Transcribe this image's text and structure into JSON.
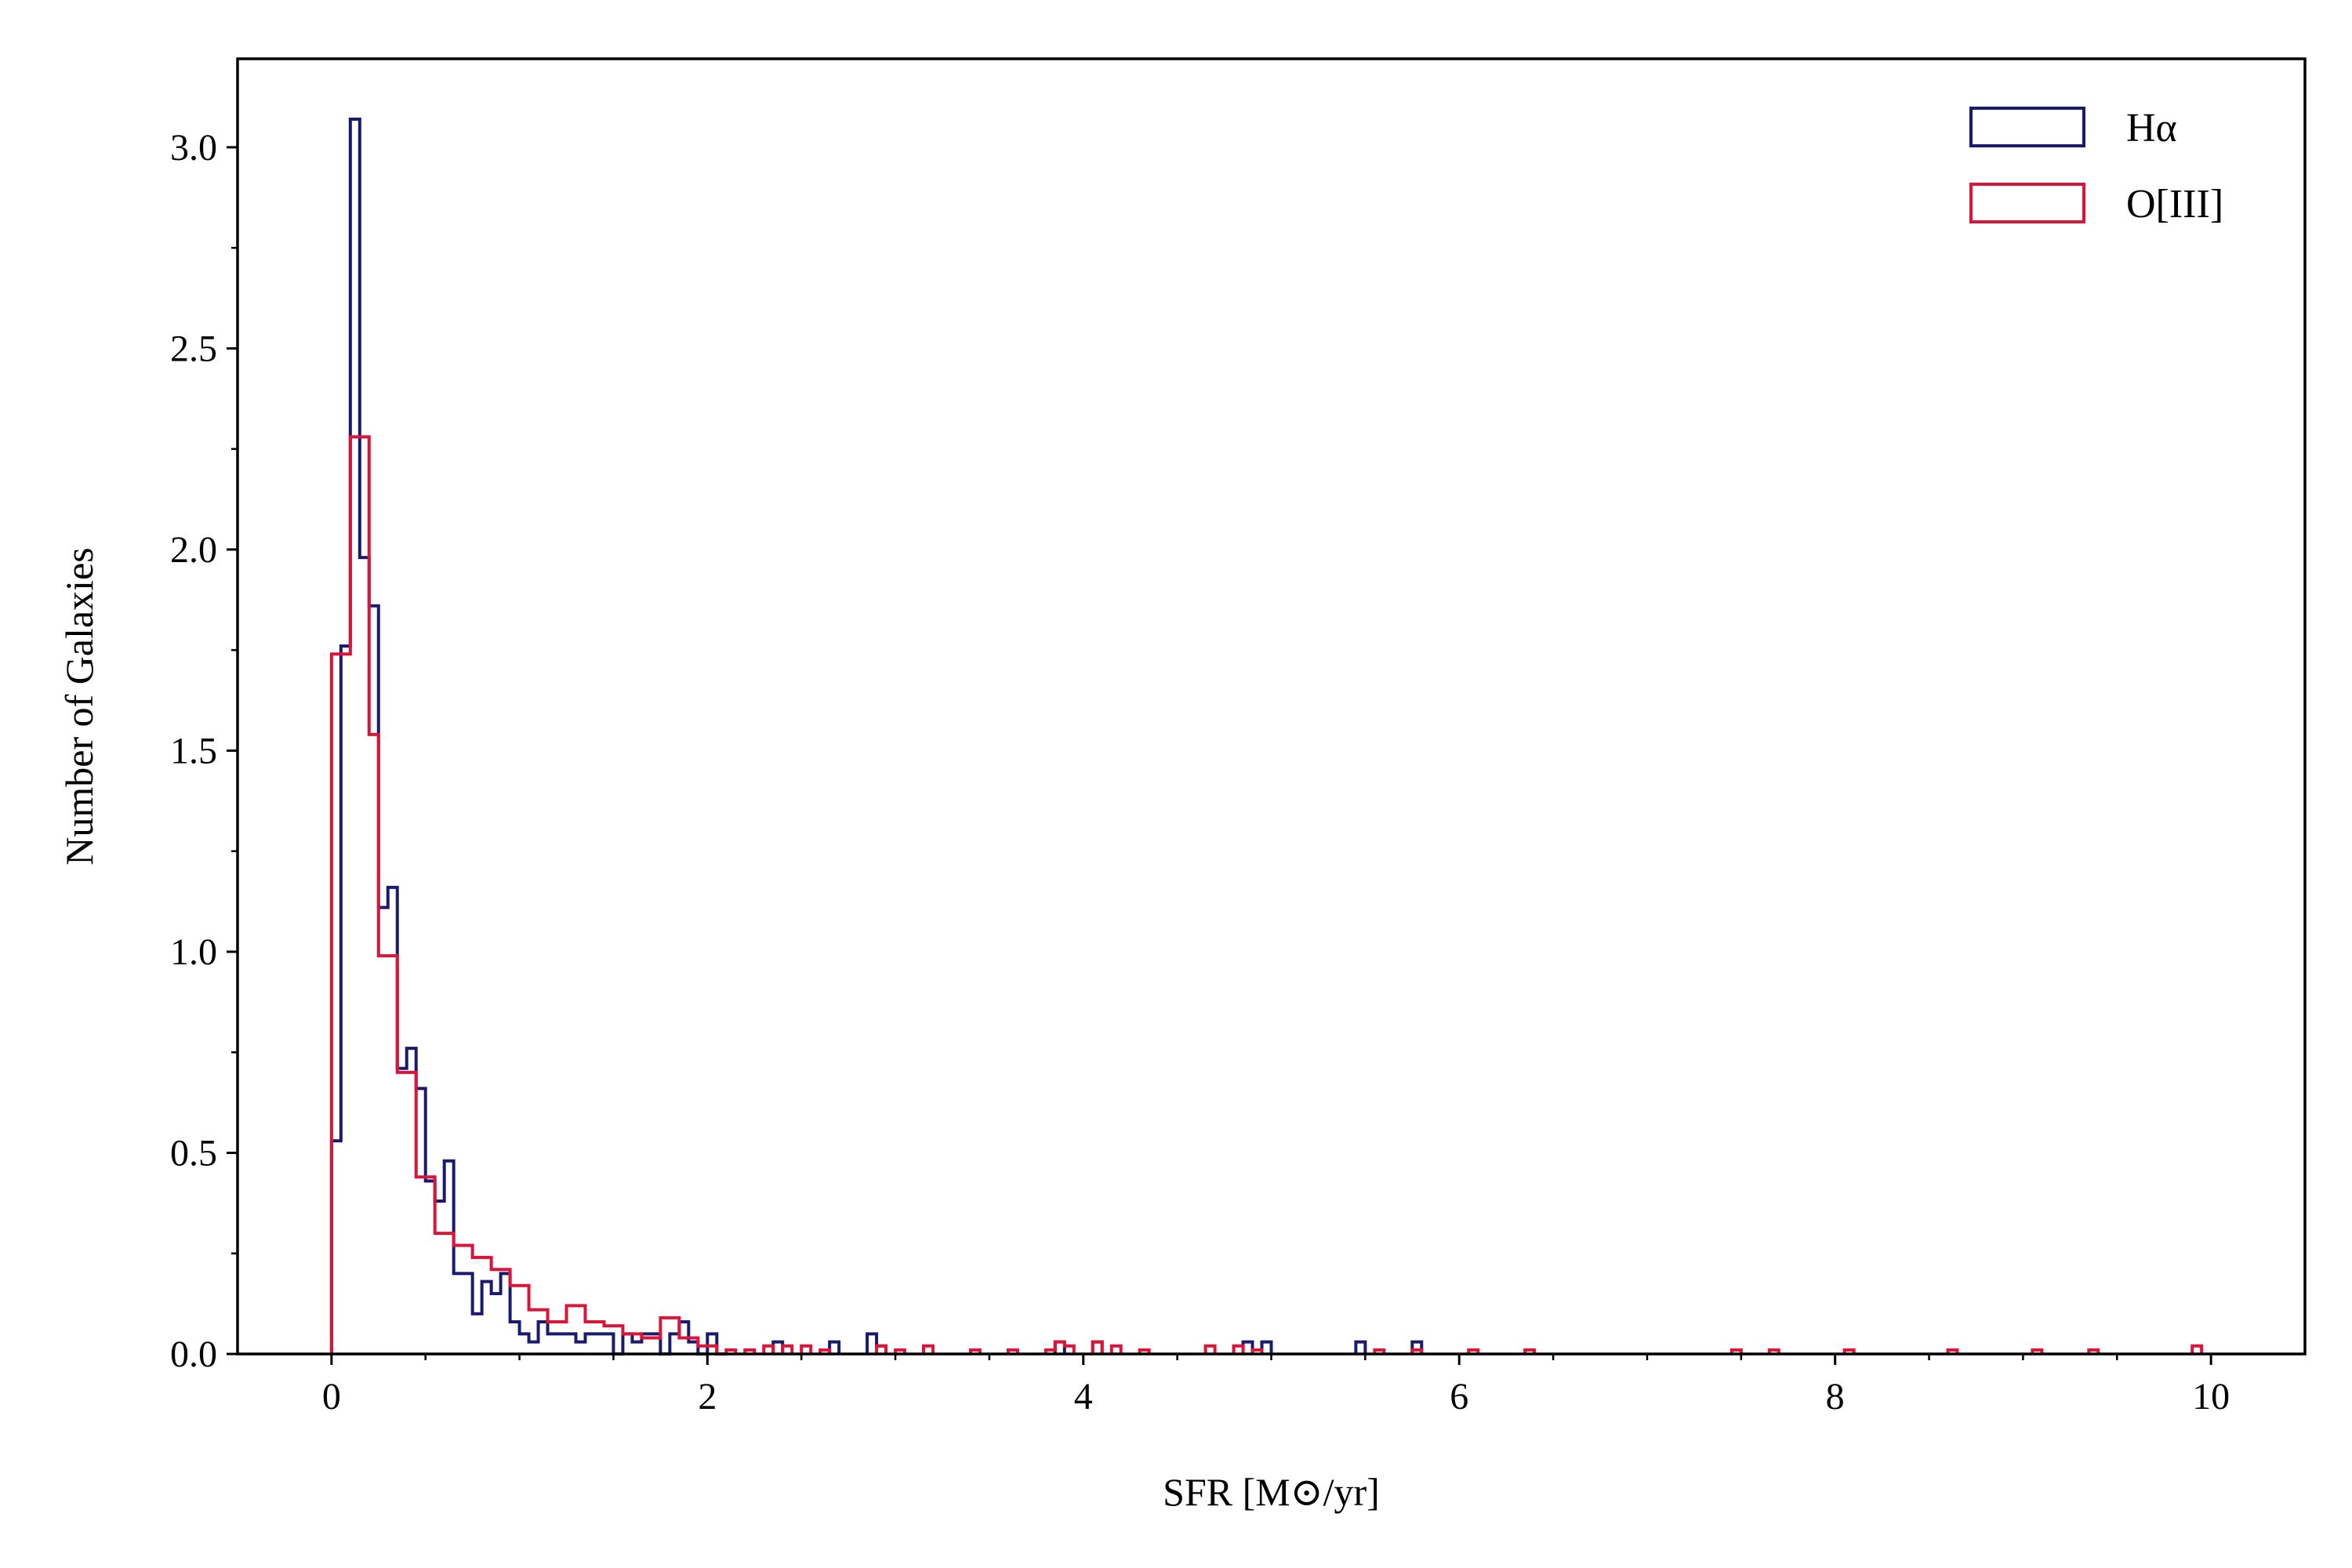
{
  "chart_data": {
    "type": "histogram",
    "xlabel": "SFR [M⊙/yr]",
    "ylabel": "Number of Galaxies",
    "xlim": [
      -0.5,
      10.5
    ],
    "ylim": [
      0.0,
      3.22
    ],
    "x_ticks": [
      "0",
      "2",
      "4",
      "6",
      "8",
      "10"
    ],
    "y_ticks": [
      "0.0",
      "0.5",
      "1.0",
      "1.5",
      "2.0",
      "2.5",
      "3.0"
    ],
    "grid": false,
    "legend_position": "top-right",
    "bin_width": 0.05,
    "series": [
      {
        "name": "Hα",
        "color": "#1b1b6e",
        "bins": [
          [
            0.0,
            0.53
          ],
          [
            0.05,
            1.76
          ],
          [
            0.1,
            3.07
          ],
          [
            0.15,
            1.98
          ],
          [
            0.2,
            1.86
          ],
          [
            0.25,
            1.11
          ],
          [
            0.3,
            1.16
          ],
          [
            0.35,
            0.71
          ],
          [
            0.4,
            0.76
          ],
          [
            0.45,
            0.66
          ],
          [
            0.5,
            0.43
          ],
          [
            0.55,
            0.38
          ],
          [
            0.6,
            0.48
          ],
          [
            0.65,
            0.2
          ],
          [
            0.7,
            0.2
          ],
          [
            0.75,
            0.1
          ],
          [
            0.8,
            0.18
          ],
          [
            0.85,
            0.15
          ],
          [
            0.9,
            0.2
          ],
          [
            0.95,
            0.08
          ],
          [
            1.0,
            0.05
          ],
          [
            1.05,
            0.03
          ],
          [
            1.1,
            0.08
          ],
          [
            1.15,
            0.05
          ],
          [
            1.2,
            0.05
          ],
          [
            1.25,
            0.05
          ],
          [
            1.3,
            0.03
          ],
          [
            1.35,
            0.05
          ],
          [
            1.4,
            0.05
          ],
          [
            1.45,
            0.05
          ],
          [
            1.5,
            0.0
          ],
          [
            1.55,
            0.05
          ],
          [
            1.6,
            0.03
          ],
          [
            1.65,
            0.05
          ],
          [
            1.7,
            0.05
          ],
          [
            1.75,
            0.0
          ],
          [
            1.8,
            0.05
          ],
          [
            1.85,
            0.08
          ],
          [
            1.9,
            0.03
          ],
          [
            1.95,
            0.0
          ],
          [
            2.0,
            0.05
          ],
          [
            2.05,
            0.0
          ],
          [
            2.35,
            0.03
          ],
          [
            2.65,
            0.03
          ],
          [
            2.85,
            0.05
          ],
          [
            2.9,
            0.02
          ],
          [
            3.85,
            0.03
          ],
          [
            4.05,
            0.03
          ],
          [
            4.85,
            0.03
          ],
          [
            4.95,
            0.03
          ],
          [
            5.45,
            0.03
          ],
          [
            5.75,
            0.03
          ]
        ]
      },
      {
        "name": "O[III]",
        "color": "#dc1438",
        "bins": [
          [
            0.0,
            1.74
          ],
          [
            0.05,
            1.74
          ],
          [
            0.1,
            2.28
          ],
          [
            0.15,
            2.28
          ],
          [
            0.2,
            1.54
          ],
          [
            0.25,
            0.99
          ],
          [
            0.3,
            0.99
          ],
          [
            0.35,
            0.7
          ],
          [
            0.4,
            0.7
          ],
          [
            0.45,
            0.44
          ],
          [
            0.5,
            0.44
          ],
          [
            0.55,
            0.3
          ],
          [
            0.6,
            0.3
          ],
          [
            0.65,
            0.27
          ],
          [
            0.7,
            0.27
          ],
          [
            0.75,
            0.24
          ],
          [
            0.8,
            0.24
          ],
          [
            0.85,
            0.21
          ],
          [
            0.9,
            0.21
          ],
          [
            0.95,
            0.17
          ],
          [
            1.0,
            0.17
          ],
          [
            1.05,
            0.11
          ],
          [
            1.1,
            0.11
          ],
          [
            1.15,
            0.08
          ],
          [
            1.2,
            0.08
          ],
          [
            1.25,
            0.12
          ],
          [
            1.3,
            0.12
          ],
          [
            1.35,
            0.08
          ],
          [
            1.4,
            0.08
          ],
          [
            1.45,
            0.07
          ],
          [
            1.5,
            0.07
          ],
          [
            1.55,
            0.05
          ],
          [
            1.6,
            0.05
          ],
          [
            1.65,
            0.04
          ],
          [
            1.7,
            0.04
          ],
          [
            1.75,
            0.09
          ],
          [
            1.8,
            0.09
          ],
          [
            1.85,
            0.04
          ],
          [
            1.9,
            0.04
          ],
          [
            1.95,
            0.02
          ],
          [
            2.0,
            0.02
          ],
          [
            2.1,
            0.01
          ],
          [
            2.2,
            0.01
          ],
          [
            2.3,
            0.02
          ],
          [
            2.4,
            0.02
          ],
          [
            2.5,
            0.02
          ],
          [
            2.6,
            0.01
          ],
          [
            2.9,
            0.02
          ],
          [
            3.0,
            0.01
          ],
          [
            3.15,
            0.02
          ],
          [
            3.4,
            0.01
          ],
          [
            3.6,
            0.01
          ],
          [
            3.8,
            0.01
          ],
          [
            3.85,
            0.03
          ],
          [
            3.9,
            0.02
          ],
          [
            4.05,
            0.03
          ],
          [
            4.15,
            0.02
          ],
          [
            4.3,
            0.01
          ],
          [
            4.65,
            0.02
          ],
          [
            4.8,
            0.02
          ],
          [
            4.9,
            0.01
          ],
          [
            5.55,
            0.01
          ],
          [
            5.75,
            0.01
          ],
          [
            6.05,
            0.01
          ],
          [
            6.35,
            0.01
          ],
          [
            7.45,
            0.01
          ],
          [
            7.65,
            0.01
          ],
          [
            8.05,
            0.01
          ],
          [
            8.6,
            0.01
          ],
          [
            9.05,
            0.01
          ],
          [
            9.35,
            0.01
          ],
          [
            9.9,
            0.02
          ]
        ]
      }
    ]
  }
}
